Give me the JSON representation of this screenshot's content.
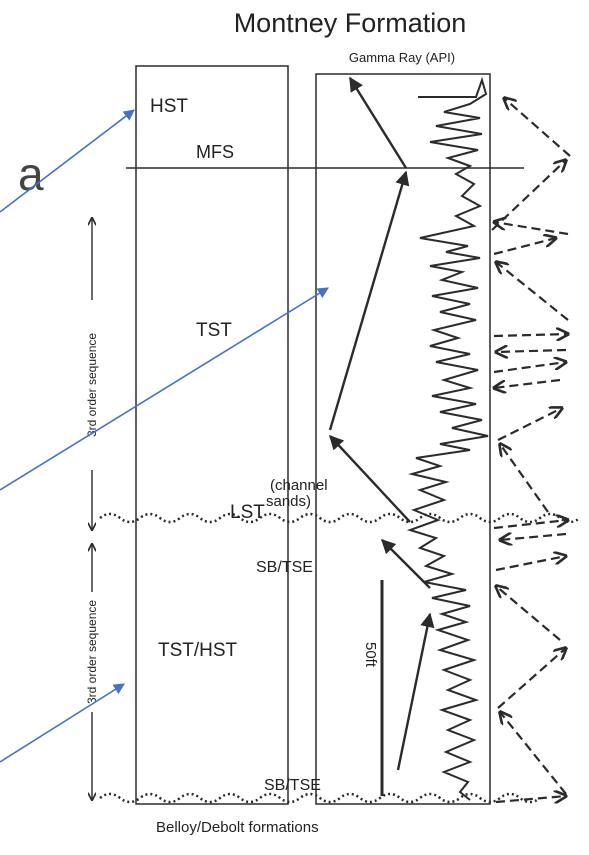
{
  "title": "Montney Formation",
  "gamma_label": "Gamma Ray (API)",
  "left_partial_text": "a",
  "labels": {
    "hst": "HST",
    "mfs": "MFS",
    "tst": "TST",
    "channel_sands_line1": "(channel",
    "channel_sands_line2": "sands)",
    "lst": "LST",
    "sb_tse_upper": "SB/TSE",
    "tst_hst": "TST/HST",
    "sb_tse_lower": "SB/TSE",
    "scale_bar": "50ft",
    "bottom": "Belloy/Debolt formations"
  },
  "sequences": [
    {
      "label": "3rd order sequence"
    },
    {
      "label": "3rd order sequence"
    }
  ],
  "colors": {
    "line": "#2b2b2b",
    "pointer": "#4472c4"
  }
}
